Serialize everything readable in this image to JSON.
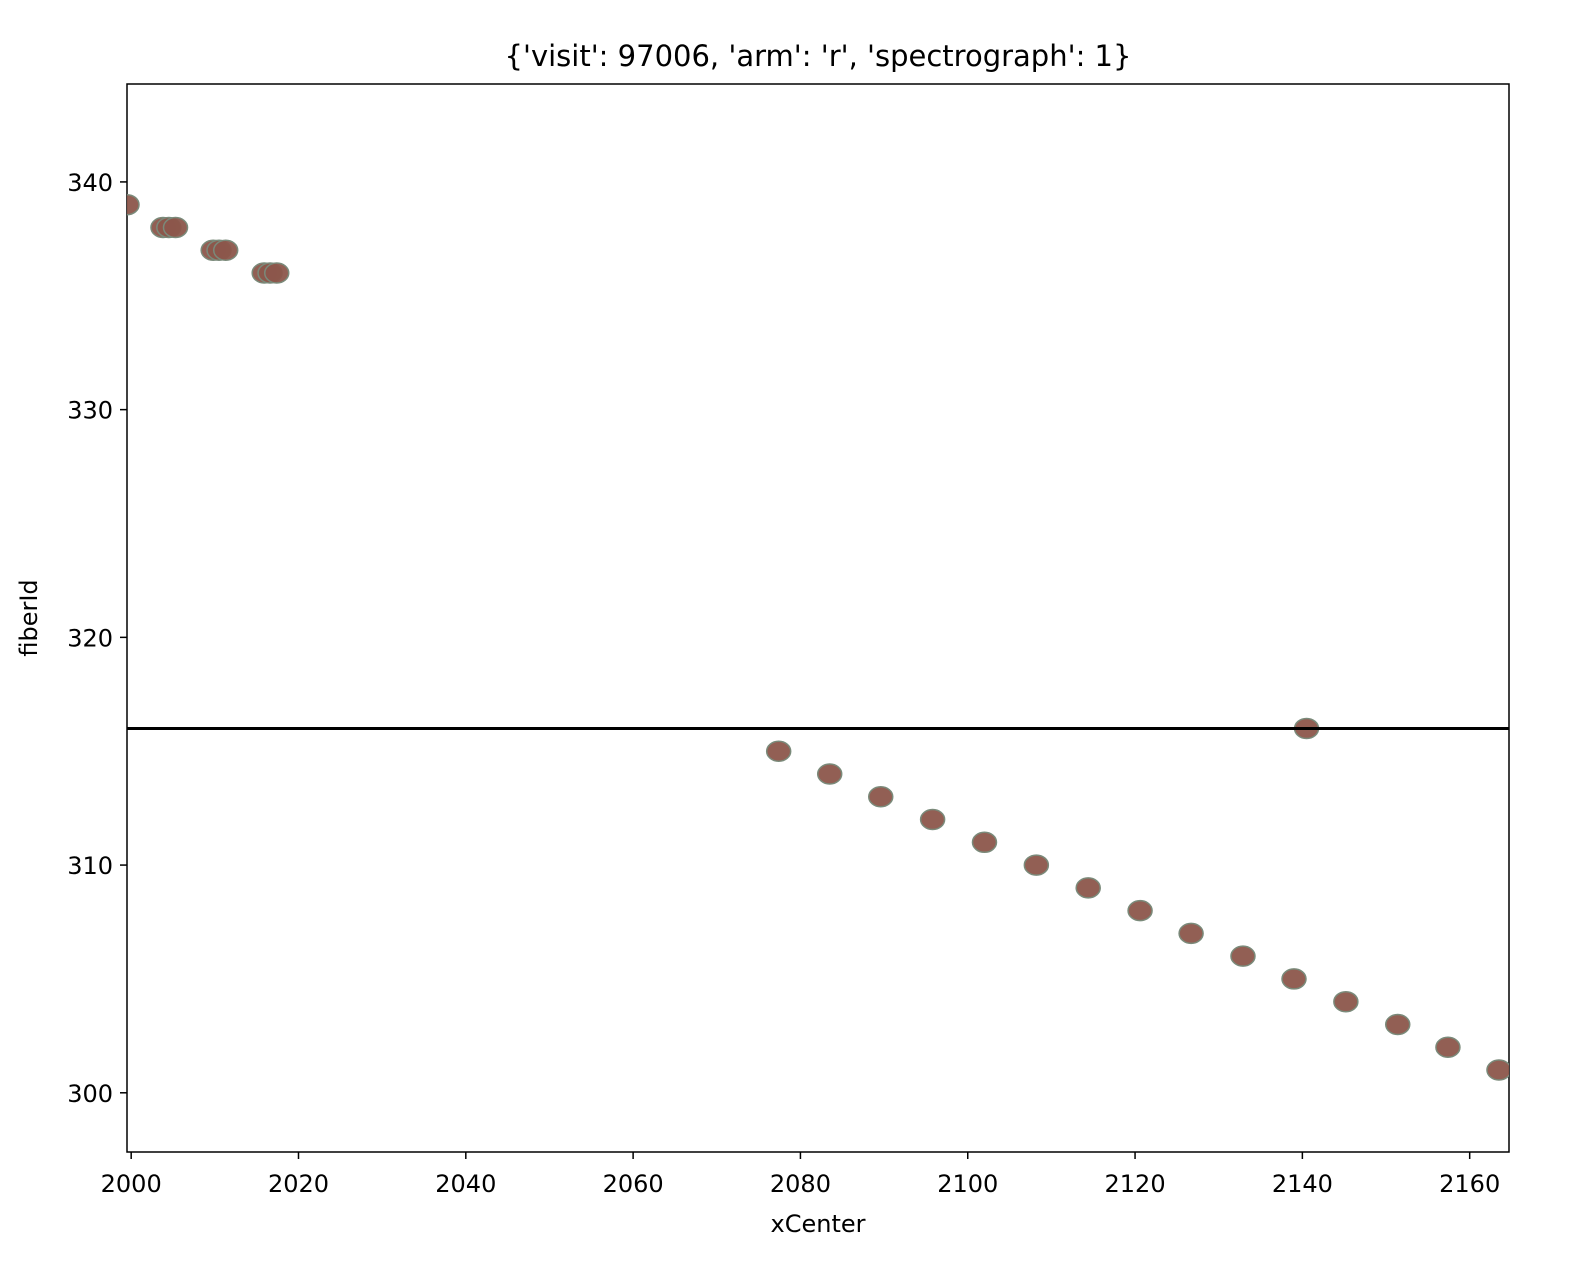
{
  "chart_data": {
    "type": "scatter",
    "title": "{'visit': 97006, 'arm': 'r', 'spectrograph': 1}",
    "xlabel": "xCenter",
    "ylabel": "fiberId",
    "xlim": [
      1999.5,
      2164.7
    ],
    "ylim": [
      297.4,
      344.3
    ],
    "xticks": [
      2000,
      2020,
      2040,
      2060,
      2080,
      2100,
      2120,
      2140,
      2160
    ],
    "yticks": [
      300,
      310,
      320,
      330,
      340
    ],
    "xtick_labels": [
      "2000",
      "2020",
      "2040",
      "2060",
      "2080",
      "2100",
      "2120",
      "2140",
      "2160"
    ],
    "ytick_labels": [
      "300",
      "310",
      "320",
      "330",
      "340"
    ],
    "grid": false,
    "hline": {
      "y": 316,
      "color": "#000000"
    },
    "marker_color": "#8c564b",
    "marker_edge_color": "#7a8a7a",
    "points": [
      {
        "x": 1999.5,
        "y": 339
      },
      {
        "x": 2003.8,
        "y": 338
      },
      {
        "x": 2004.5,
        "y": 338
      },
      {
        "x": 2005.3,
        "y": 338
      },
      {
        "x": 2009.8,
        "y": 337
      },
      {
        "x": 2010.5,
        "y": 337
      },
      {
        "x": 2011.3,
        "y": 337
      },
      {
        "x": 2015.9,
        "y": 336
      },
      {
        "x": 2016.6,
        "y": 336
      },
      {
        "x": 2017.4,
        "y": 336
      },
      {
        "x": 2077.4,
        "y": 315
      },
      {
        "x": 2083.5,
        "y": 314
      },
      {
        "x": 2089.6,
        "y": 313
      },
      {
        "x": 2095.8,
        "y": 312
      },
      {
        "x": 2102.0,
        "y": 311
      },
      {
        "x": 2108.2,
        "y": 310
      },
      {
        "x": 2114.4,
        "y": 309
      },
      {
        "x": 2120.6,
        "y": 308
      },
      {
        "x": 2126.7,
        "y": 307
      },
      {
        "x": 2132.9,
        "y": 306
      },
      {
        "x": 2139.0,
        "y": 305
      },
      {
        "x": 2140.5,
        "y": 316
      },
      {
        "x": 2145.2,
        "y": 304
      },
      {
        "x": 2151.4,
        "y": 303
      },
      {
        "x": 2157.4,
        "y": 302
      },
      {
        "x": 2163.5,
        "y": 301
      }
    ]
  }
}
